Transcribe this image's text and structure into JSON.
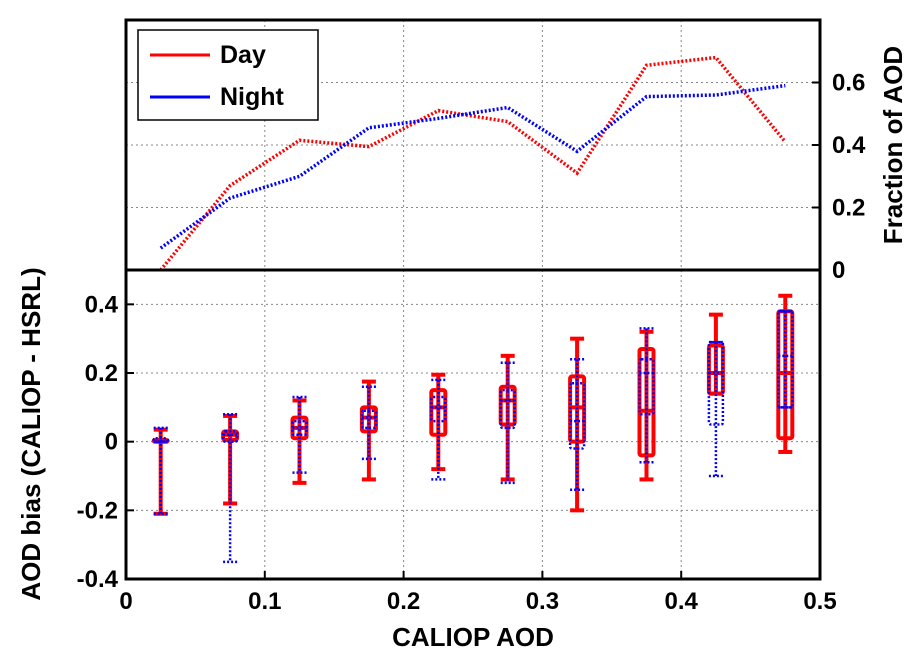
{
  "chart_data": [
    {
      "type": "line",
      "panel": "top",
      "title": "",
      "xlabel": "",
      "ylabel": "Fraction of AOD",
      "ylabel_side": "right",
      "xlim": [
        0,
        0.5
      ],
      "ylim": [
        0,
        0.8
      ],
      "x_ticks": [
        0.1,
        0.2,
        0.3,
        0.4
      ],
      "y_ticks": [
        0,
        0.2,
        0.4,
        0.6
      ],
      "y_tick_labels": [
        "0",
        "0.2",
        "0.4",
        "0.6"
      ],
      "grid": true,
      "legend": {
        "placement": "top-left",
        "entries": [
          "Day",
          "Night"
        ]
      },
      "x": [
        0.025,
        0.075,
        0.125,
        0.175,
        0.225,
        0.275,
        0.325,
        0.375,
        0.425,
        0.475
      ],
      "series": [
        {
          "name": "Day",
          "color": "#ff0000",
          "style": "dotted",
          "values": [
            0.0,
            0.27,
            0.415,
            0.395,
            0.51,
            0.475,
            0.31,
            0.655,
            0.68,
            0.41
          ]
        },
        {
          "name": "Night",
          "color": "#0000ff",
          "style": "dotted",
          "values": [
            0.07,
            0.23,
            0.3,
            0.455,
            0.485,
            0.52,
            0.38,
            0.555,
            0.56,
            0.59
          ]
        }
      ]
    },
    {
      "type": "box",
      "panel": "bottom",
      "title": "",
      "xlabel": "CALIOP AOD",
      "ylabel": "AOD bias (CALIOP - HSRL)",
      "xlim": [
        0,
        0.5
      ],
      "ylim": [
        -0.4,
        0.5
      ],
      "x_ticks": [
        0,
        0.1,
        0.2,
        0.3,
        0.4,
        0.5
      ],
      "x_tick_labels": [
        "0",
        "0.1",
        "0.2",
        "0.3",
        "0.4",
        "0.5"
      ],
      "y_ticks": [
        -0.4,
        -0.2,
        0,
        0.2,
        0.4
      ],
      "y_tick_labels": [
        "-0.4",
        "-0.2",
        "0",
        "0.2",
        "0.4"
      ],
      "grid": true,
      "series": [
        {
          "name": "Day",
          "color": "#ff0000",
          "style": "solid",
          "boxes": [
            {
              "x": 0.025,
              "min": -0.21,
              "q1": 0.0,
              "median": 0.0,
              "q3": 0.005,
              "max": 0.035
            },
            {
              "x": 0.075,
              "min": -0.18,
              "q1": 0.005,
              "median": 0.02,
              "q3": 0.03,
              "max": 0.075
            },
            {
              "x": 0.125,
              "min": -0.12,
              "q1": 0.01,
              "median": 0.04,
              "q3": 0.07,
              "max": 0.12
            },
            {
              "x": 0.175,
              "min": -0.11,
              "q1": 0.03,
              "median": 0.07,
              "q3": 0.1,
              "max": 0.175
            },
            {
              "x": 0.225,
              "min": -0.08,
              "q1": 0.02,
              "median": 0.1,
              "q3": 0.15,
              "max": 0.195
            },
            {
              "x": 0.275,
              "min": -0.11,
              "q1": 0.05,
              "median": 0.12,
              "q3": 0.16,
              "max": 0.25
            },
            {
              "x": 0.325,
              "min": -0.2,
              "q1": 0.0,
              "median": 0.1,
              "q3": 0.19,
              "max": 0.3
            },
            {
              "x": 0.375,
              "min": -0.11,
              "q1": -0.04,
              "median": 0.09,
              "q3": 0.27,
              "max": 0.32
            },
            {
              "x": 0.425,
              "min": 0.14,
              "q1": 0.14,
              "median": 0.2,
              "q3": 0.28,
              "max": 0.37
            },
            {
              "x": 0.475,
              "min": -0.03,
              "q1": 0.01,
              "median": 0.2,
              "q3": 0.38,
              "max": 0.425
            }
          ]
        },
        {
          "name": "Night",
          "color": "#0000ff",
          "style": "dotted",
          "boxes": [
            {
              "x": 0.025,
              "min": -0.21,
              "q1": 0.0,
              "median": 0.0,
              "q3": 0.01,
              "max": 0.04
            },
            {
              "x": 0.075,
              "min": -0.35,
              "q1": 0.0,
              "median": 0.02,
              "q3": 0.03,
              "max": 0.08
            },
            {
              "x": 0.125,
              "min": -0.09,
              "q1": 0.02,
              "median": 0.04,
              "q3": 0.06,
              "max": 0.13
            },
            {
              "x": 0.175,
              "min": -0.05,
              "q1": 0.04,
              "median": 0.07,
              "q3": 0.09,
              "max": 0.16
            },
            {
              "x": 0.225,
              "min": -0.11,
              "q1": 0.06,
              "median": 0.1,
              "q3": 0.13,
              "max": 0.18
            },
            {
              "x": 0.275,
              "min": -0.12,
              "q1": 0.04,
              "median": 0.12,
              "q3": 0.15,
              "max": 0.23
            },
            {
              "x": 0.325,
              "min": -0.14,
              "q1": -0.02,
              "median": 0.06,
              "q3": 0.17,
              "max": 0.24
            },
            {
              "x": 0.375,
              "min": -0.06,
              "q1": 0.08,
              "median": 0.2,
              "q3": 0.24,
              "max": 0.33
            },
            {
              "x": 0.425,
              "min": -0.1,
              "q1": 0.05,
              "median": 0.2,
              "q3": 0.29,
              "max": 0.29
            },
            {
              "x": 0.475,
              "min": 0.1,
              "q1": 0.1,
              "median": 0.25,
              "q3": 0.38,
              "max": 0.38
            }
          ]
        }
      ]
    }
  ]
}
